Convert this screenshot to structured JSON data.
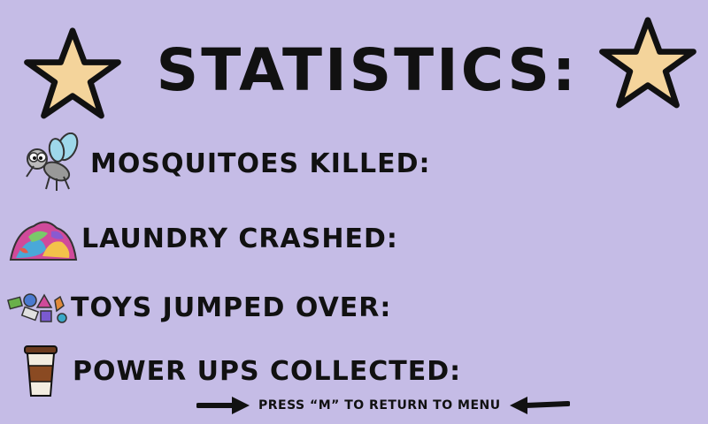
{
  "screen": {
    "title": "STATISTICS:",
    "background_color": "#c5bce6",
    "star_color": "#f4d49b"
  },
  "stats": [
    {
      "label": "MOSQUITOES KILLED:",
      "icon": "mosquito-icon",
      "value": ""
    },
    {
      "label": "LAUNDRY CRASHED:",
      "icon": "laundry-pile-icon",
      "value": ""
    },
    {
      "label": "TOYS JUMPED OVER:",
      "icon": "toys-icon",
      "value": ""
    },
    {
      "label": "POWER UPS COLLECTED:",
      "icon": "coffee-cup-icon",
      "value": ""
    }
  ],
  "footer": {
    "instruction": "PRESS “M” TO RETURN TO MENU",
    "left_icon": "arrow-right-icon",
    "right_icon": "arrow-left-icon"
  }
}
